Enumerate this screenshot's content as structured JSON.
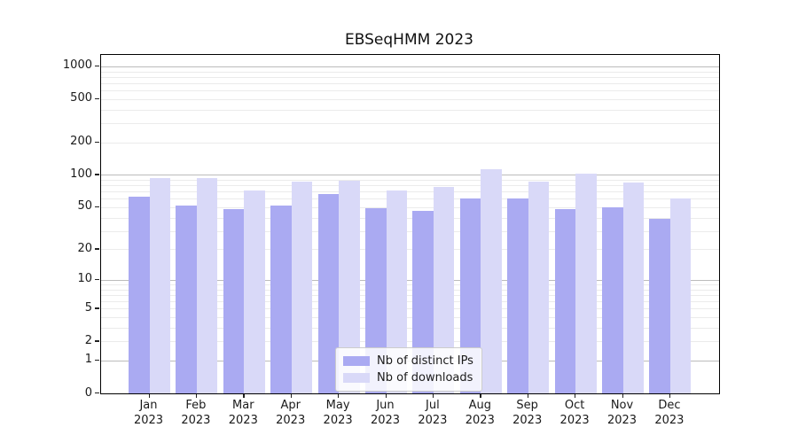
{
  "chart_data": {
    "type": "bar",
    "title": "EBSeqHMM 2023",
    "categories": [
      "Jan 2023",
      "Feb 2023",
      "Mar 2023",
      "Apr 2023",
      "May 2023",
      "Jun 2023",
      "Jul 2023",
      "Aug 2023",
      "Sep 2023",
      "Oct 2023",
      "Nov 2023",
      "Dec 2023"
    ],
    "series": [
      {
        "name": "Nb of distinct IPs",
        "color": "#aaaaf2",
        "values": [
          63,
          52,
          48,
          52,
          66,
          49,
          46,
          61,
          61,
          48,
          50,
          39
        ]
      },
      {
        "name": "Nb of downloads",
        "color": "#d9d9f8",
        "values": [
          93,
          94,
          72,
          86,
          88,
          72,
          77,
          112,
          87,
          103,
          85,
          60
        ]
      }
    ],
    "ylabel": "",
    "xlabel": "",
    "yscale": "log10(1+x)",
    "yticks": [
      0,
      1,
      2,
      5,
      10,
      20,
      50,
      100,
      200,
      500,
      1000
    ],
    "ylim": [
      0,
      1275
    ],
    "grid": "horizontal",
    "legend_position": "lower center inside"
  }
}
